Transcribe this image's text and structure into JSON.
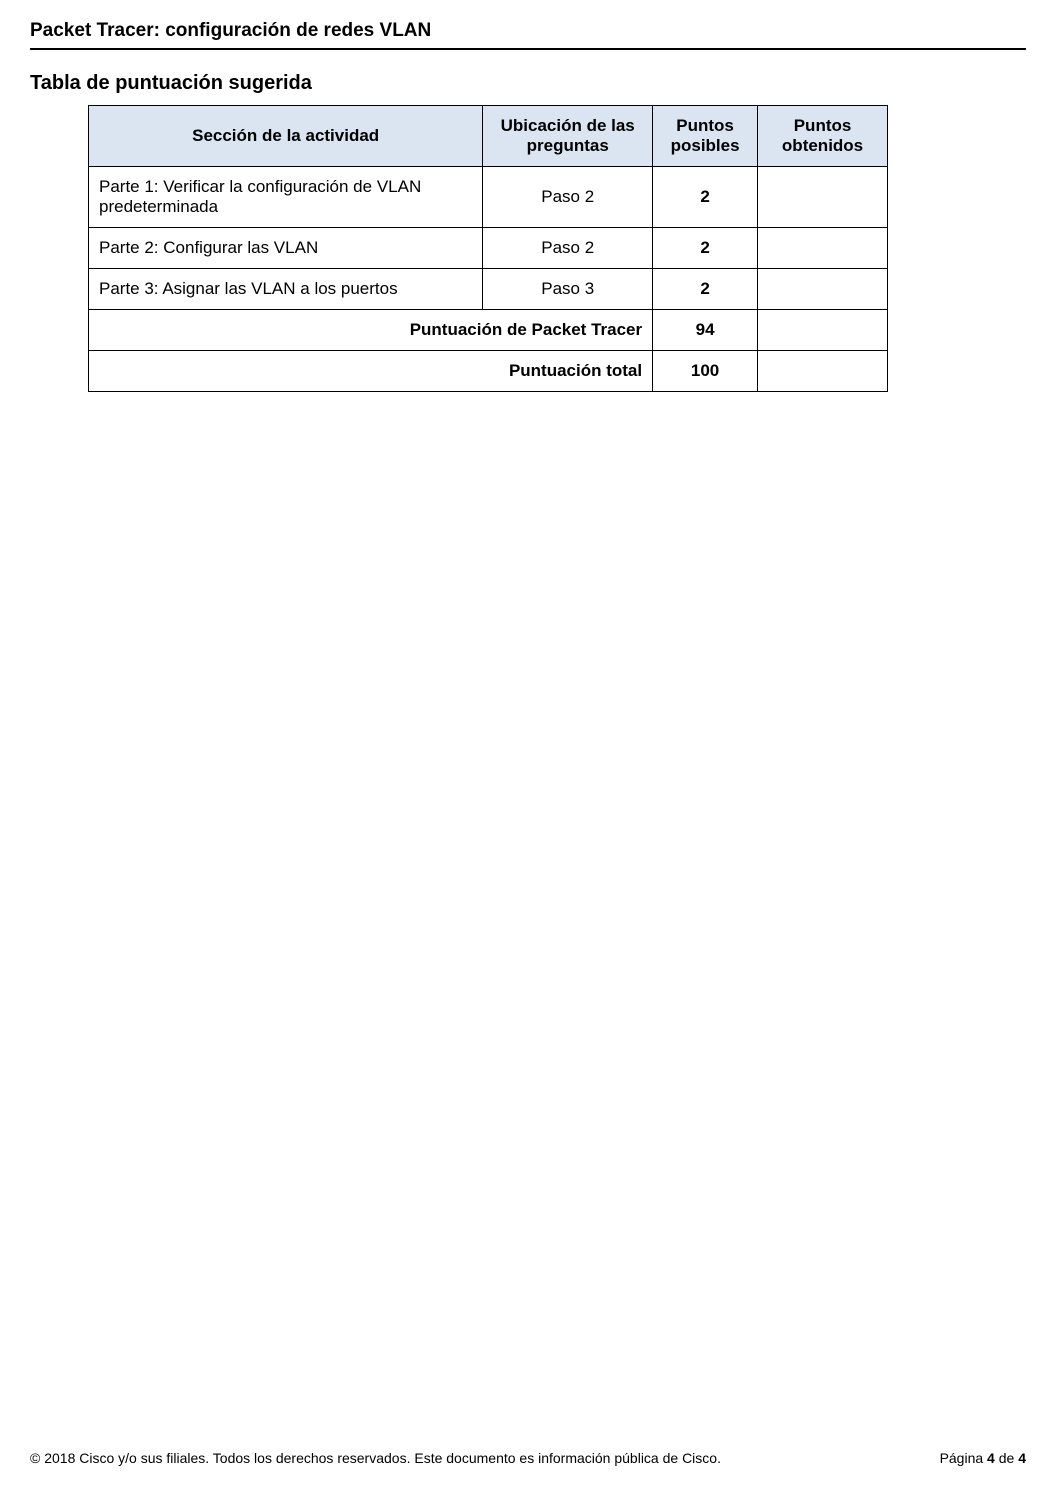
{
  "header": {
    "title": "Packet Tracer: configuración de redes VLAN"
  },
  "section": {
    "title": "Tabla de puntuación sugerida"
  },
  "table": {
    "columns": {
      "section": "Sección de la actividad",
      "location": "Ubicación de las preguntas",
      "possible": "Puntos posibles",
      "earned": "Puntos obtenidos"
    },
    "col_widths": [
      "395px",
      "170px",
      "105px",
      "130px"
    ],
    "header_bg": "#dbe5f1",
    "border_color": "#000000",
    "rows": [
      {
        "section": "Parte 1: Verificar la configuración de VLAN predeterminada",
        "location": "Paso 2",
        "possible": "2",
        "earned": ""
      },
      {
        "section": "Parte 2: Configurar las VLAN",
        "location": "Paso 2",
        "possible": "2",
        "earned": ""
      },
      {
        "section": "Parte 3: Asignar las VLAN a los puertos",
        "location": "Paso 3",
        "possible": "2",
        "earned": ""
      }
    ],
    "summary": [
      {
        "label": "Puntuación de Packet Tracer",
        "possible": "94",
        "earned": ""
      },
      {
        "label": "Puntuación total",
        "possible": "100",
        "earned": ""
      }
    ]
  },
  "footer": {
    "copyright": "© 2018 Cisco y/o sus filiales. Todos los derechos reservados. Este documento es información pública de Cisco.",
    "page_label_prefix": "Página ",
    "page_current": "4",
    "page_sep": " de ",
    "page_total": "4"
  }
}
